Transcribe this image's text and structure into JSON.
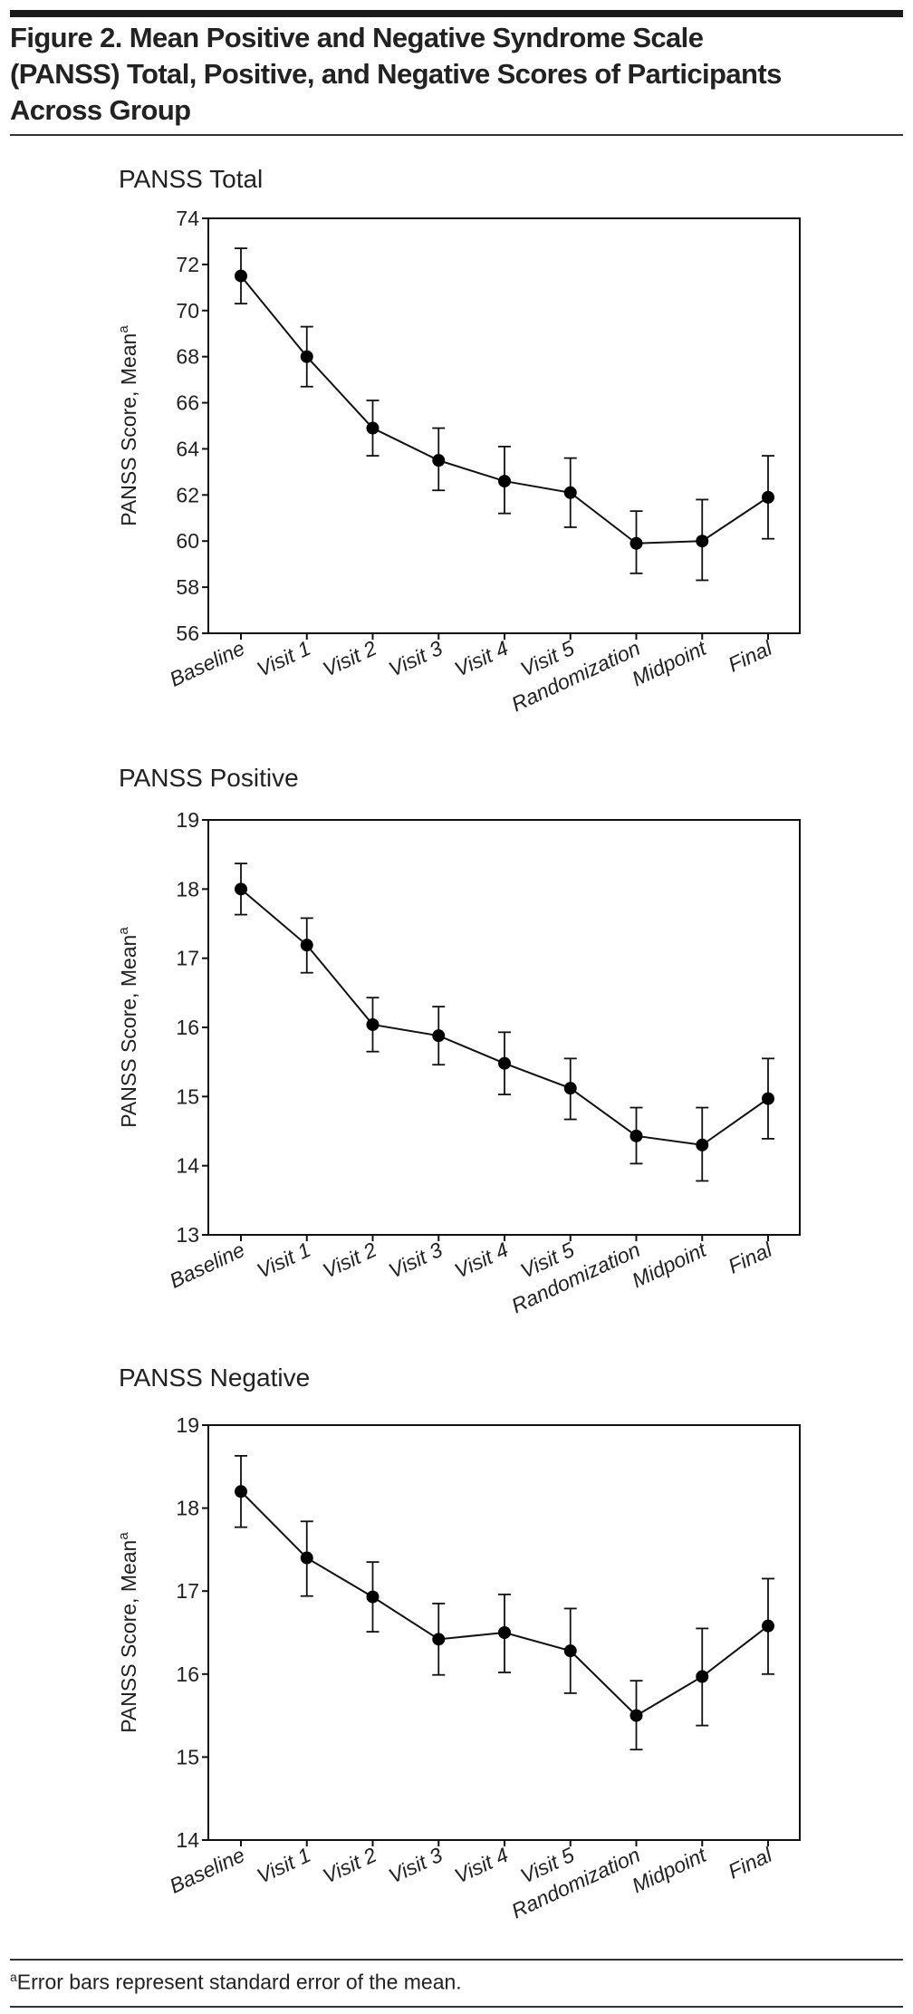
{
  "figure": {
    "title_lines": [
      "Figure 2. Mean Positive and Negative Syndrome Scale",
      "(PANSS) Total, Positive, and Negative Scores of Participants",
      "Across Group"
    ],
    "footnote_marker": "a",
    "footnote": "Error bars represent standard error of the mean."
  },
  "chart_data": [
    {
      "type": "line",
      "title": "PANSS Total",
      "ylabel": "PANSS Score, Mean",
      "ylabel_sup": "a",
      "categories": [
        "Baseline",
        "Visit 1",
        "Visit 2",
        "Visit 3",
        "Visit 4",
        "Visit 5",
        "Randomization",
        "Midpoint",
        "Final"
      ],
      "ylim": [
        56,
        74
      ],
      "yticks": [
        56,
        58,
        60,
        62,
        64,
        66,
        68,
        70,
        72,
        74
      ],
      "grid": false,
      "series": [
        {
          "values": [
            71.5,
            68.0,
            64.9,
            63.5,
            62.6,
            62.1,
            59.9,
            60.0,
            61.9
          ],
          "error_upper": [
            72.7,
            69.3,
            66.1,
            64.9,
            64.1,
            63.6,
            61.3,
            61.8,
            63.7
          ],
          "error_lower": [
            70.3,
            66.7,
            63.7,
            62.2,
            61.2,
            60.6,
            58.6,
            58.3,
            60.1
          ]
        }
      ]
    },
    {
      "type": "line",
      "title": "PANSS Positive",
      "ylabel": "PANSS Score, Mean",
      "ylabel_sup": "a",
      "categories": [
        "Baseline",
        "Visit 1",
        "Visit 2",
        "Visit 3",
        "Visit 4",
        "Visit 5",
        "Randomization",
        "Midpoint",
        "Final"
      ],
      "ylim": [
        13,
        19
      ],
      "yticks": [
        13,
        14,
        15,
        16,
        17,
        18,
        19
      ],
      "grid": false,
      "series": [
        {
          "values": [
            18.0,
            17.19,
            16.04,
            15.88,
            15.48,
            15.12,
            14.43,
            14.3,
            14.97
          ],
          "error_upper": [
            18.37,
            17.58,
            16.43,
            16.3,
            15.93,
            15.55,
            14.84,
            14.84,
            15.55
          ],
          "error_lower": [
            17.63,
            16.79,
            15.65,
            15.46,
            15.03,
            14.67,
            14.03,
            13.78,
            14.39
          ]
        }
      ]
    },
    {
      "type": "line",
      "title": "PANSS Negative",
      "ylabel": "PANSS Score, Mean",
      "ylabel_sup": "a",
      "categories": [
        "Baseline",
        "Visit 1",
        "Visit 2",
        "Visit 3",
        "Visit 4",
        "Visit 5",
        "Randomization",
        "Midpoint",
        "Final"
      ],
      "ylim": [
        14,
        19
      ],
      "yticks": [
        14,
        15,
        16,
        17,
        18,
        19
      ],
      "grid": false,
      "series": [
        {
          "values": [
            18.2,
            17.4,
            16.93,
            16.42,
            16.5,
            16.28,
            15.5,
            15.97,
            16.58
          ],
          "error_upper": [
            18.63,
            17.84,
            17.35,
            16.85,
            16.96,
            16.79,
            15.92,
            16.55,
            17.15
          ],
          "error_lower": [
            17.77,
            16.94,
            16.51,
            15.99,
            16.02,
            15.77,
            15.09,
            15.38,
            16.0
          ]
        }
      ]
    }
  ]
}
